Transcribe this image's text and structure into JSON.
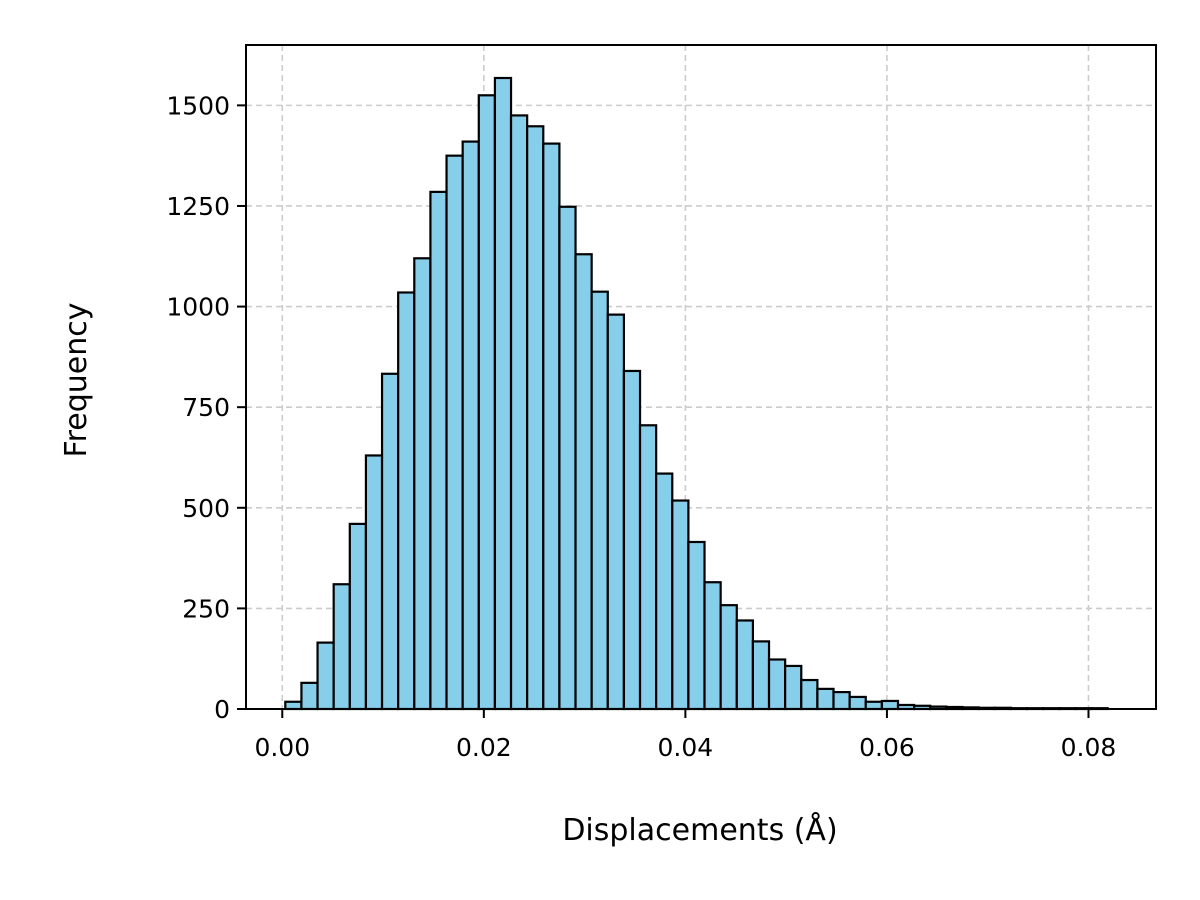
{
  "chart_data": {
    "type": "bar",
    "title": "",
    "xlabel": "Displacements (Å)",
    "ylabel": "Frequency",
    "xlim": [
      -0.0036,
      0.0867
    ],
    "ylim": [
      0,
      1650
    ],
    "bin_width": 0.0016,
    "bin_start": 0.0003,
    "values": [
      18,
      65,
      165,
      310,
      460,
      630,
      833,
      1035,
      1120,
      1285,
      1375,
      1410,
      1525,
      1568,
      1475,
      1448,
      1405,
      1248,
      1130,
      1037,
      980,
      840,
      705,
      585,
      518,
      415,
      315,
      258,
      220,
      168,
      123,
      107,
      72,
      50,
      42,
      30,
      18,
      20,
      10,
      8,
      6,
      5,
      4,
      3,
      3,
      2,
      2,
      2,
      2,
      2,
      2
    ],
    "x_ticks": [
      0.0,
      0.02,
      0.04,
      0.06,
      0.08
    ],
    "x_tick_labels": [
      "0.00",
      "0.02",
      "0.04",
      "0.06",
      "0.08"
    ],
    "y_ticks": [
      0,
      250,
      500,
      750,
      1000,
      1250,
      1500
    ],
    "y_tick_labels": [
      "0",
      "250",
      "500",
      "750",
      "1000",
      "1250",
      "1500"
    ],
    "grid": true,
    "colors": {
      "bar_fill": "#87ceeb",
      "bar_edge": "#000000",
      "grid": "#cccccc"
    }
  }
}
